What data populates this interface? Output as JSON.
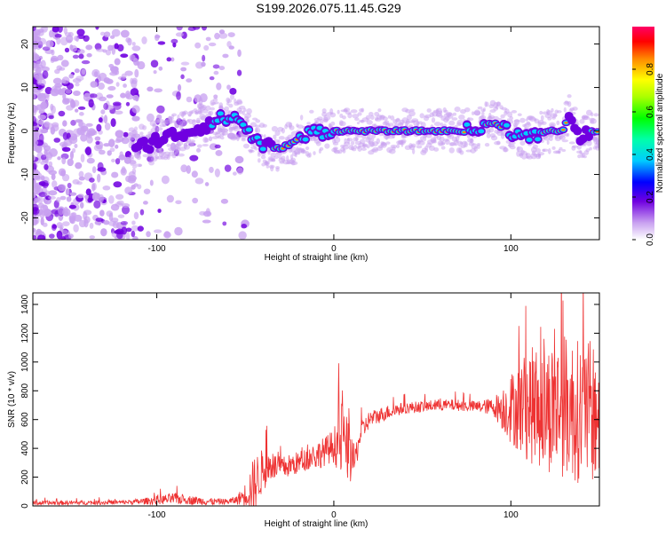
{
  "title": "S199.2026.075.11.45.G29",
  "colors": {
    "snr_line": "#ee3333",
    "scatter": "#8a2be2",
    "axis": "#000000",
    "background": "#ffffff"
  },
  "chart_data": [
    {
      "type": "heatmap",
      "name": "spectrogram",
      "xlabel": "Height of straight line (km)",
      "ylabel": "Frequency (Hz)",
      "xlim": [
        -170,
        150
      ],
      "ylim": [
        -25,
        24
      ],
      "xticks": [
        -100,
        0,
        100
      ],
      "yticks": [
        20,
        10,
        0,
        -10,
        -20
      ],
      "ridge": {
        "x": [
          -110,
          -100,
          -90,
          -80,
          -70,
          -60,
          -55,
          -50,
          -45,
          -40,
          -35,
          -30,
          -25,
          -20,
          -15,
          -10,
          -5,
          0,
          10,
          20,
          30,
          40,
          50,
          60,
          70,
          80,
          85,
          90,
          95,
          100,
          105,
          110,
          115,
          120,
          125,
          130,
          133,
          135,
          138,
          140,
          143,
          146,
          150
        ],
        "y": [
          -4,
          -2,
          -1,
          0,
          2,
          3,
          3,
          1,
          -2,
          -3,
          -4,
          -4,
          -3,
          -2,
          -1,
          0,
          0,
          0,
          0,
          0,
          0,
          0,
          0,
          0,
          0,
          0,
          1,
          2,
          1,
          0,
          -1,
          -2,
          -1,
          0,
          0,
          0,
          5,
          1,
          -1,
          -2,
          -1,
          0,
          0
        ]
      },
      "colorbar": {
        "label": "Normalized spectral amplitude",
        "ticks": [
          0.0,
          0.2,
          0.4,
          0.6,
          0.8
        ],
        "tick_labels": [
          "0.0",
          "0.2",
          "0.4",
          "0.6",
          "0.8"
        ],
        "range": [
          0,
          1
        ]
      }
    },
    {
      "type": "line",
      "name": "snr",
      "xlabel": "Height of straight line (km)",
      "ylabel": "SNR (10 * v/v)",
      "xlim": [
        -170,
        150
      ],
      "ylim": [
        0,
        1480
      ],
      "xticks": [
        -100,
        0,
        100
      ],
      "yticks": [
        0,
        200,
        400,
        600,
        800,
        1000,
        1200,
        1400
      ],
      "envelope": {
        "x": [
          -170,
          -120,
          -110,
          -100,
          -90,
          -80,
          -70,
          -60,
          -55,
          -50,
          -45,
          -40,
          -35,
          -30,
          -25,
          -20,
          -15,
          -10,
          -5,
          0,
          5,
          8,
          10,
          12,
          15,
          20,
          30,
          40,
          50,
          60,
          70,
          80,
          90,
          95,
          100,
          110,
          120,
          130,
          140,
          150
        ],
        "base": [
          20,
          25,
          30,
          40,
          50,
          40,
          30,
          30,
          40,
          80,
          150,
          250,
          280,
          260,
          280,
          300,
          330,
          350,
          380,
          420,
          460,
          380,
          300,
          320,
          500,
          600,
          650,
          680,
          690,
          700,
          700,
          690,
          690,
          680,
          680,
          700,
          680,
          700,
          650,
          650
        ],
        "noise": [
          15,
          15,
          20,
          30,
          40,
          30,
          25,
          20,
          30,
          80,
          200,
          150,
          100,
          80,
          80,
          80,
          80,
          100,
          100,
          120,
          300,
          200,
          150,
          100,
          80,
          60,
          50,
          40,
          40,
          40,
          40,
          40,
          60,
          150,
          250,
          400,
          450,
          500,
          500,
          500
        ]
      }
    }
  ]
}
